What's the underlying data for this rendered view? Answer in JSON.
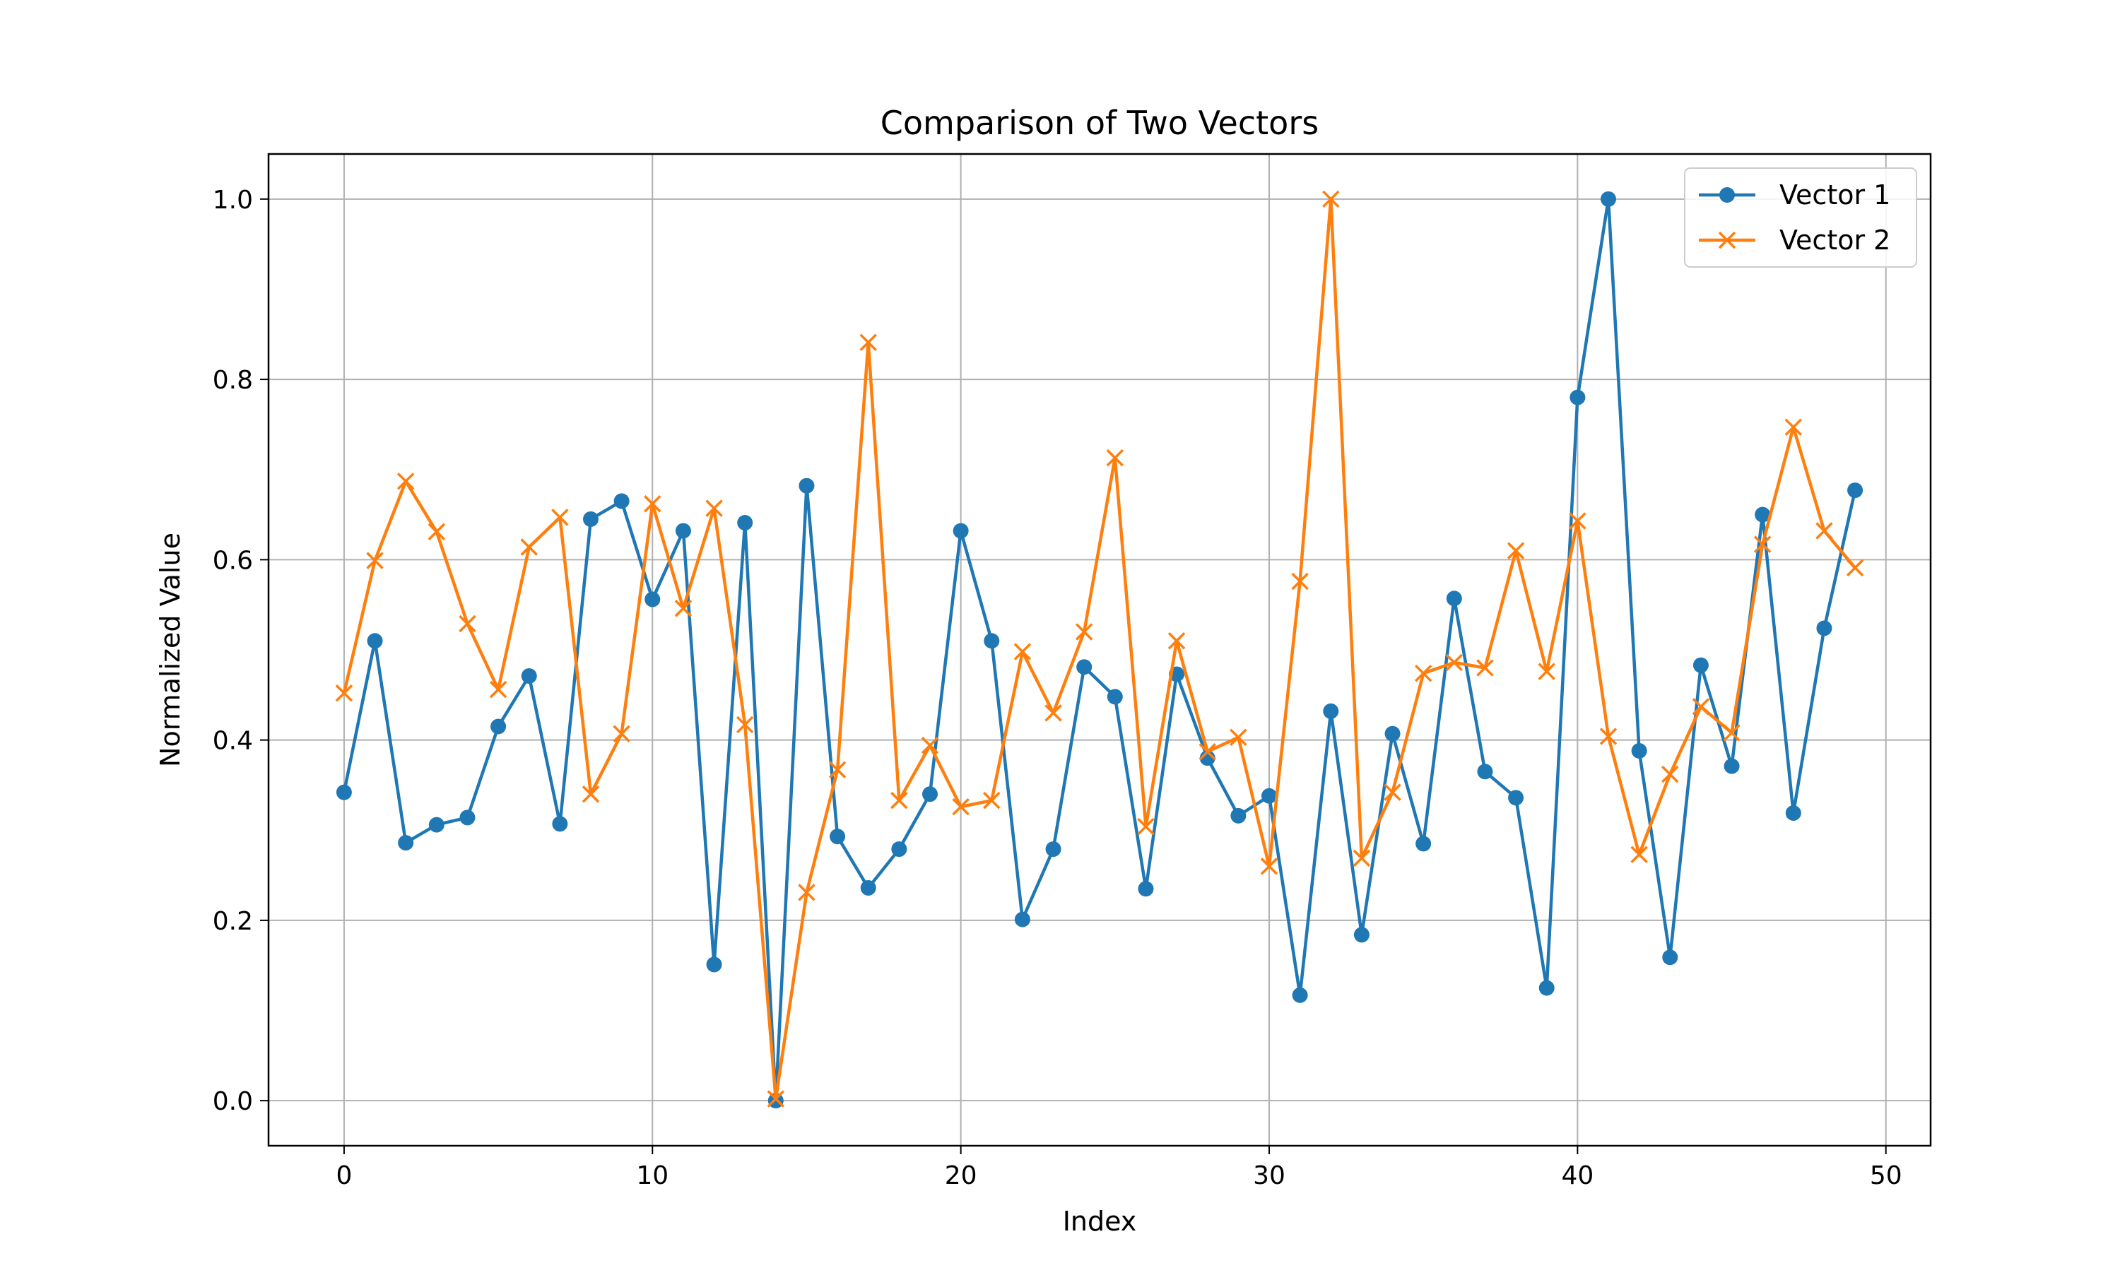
{
  "chart_data": {
    "type": "line",
    "title": "Comparison of Two Vectors",
    "xlabel": "Index",
    "ylabel": "Normalized Value",
    "xlim": [
      -2.45,
      51.45
    ],
    "ylim": [
      -0.05,
      1.05
    ],
    "xticks": [
      0,
      10,
      20,
      30,
      40,
      50
    ],
    "yticks": [
      0.0,
      0.2,
      0.4,
      0.6,
      0.8,
      1.0
    ],
    "xtick_labels": [
      "0",
      "10",
      "20",
      "30",
      "40",
      "50"
    ],
    "ytick_labels": [
      "0.0",
      "0.2",
      "0.4",
      "0.6",
      "0.8",
      "1.0"
    ],
    "grid": true,
    "legend_position": "top-right",
    "x": [
      0,
      1,
      2,
      3,
      4,
      5,
      6,
      7,
      8,
      9,
      10,
      11,
      12,
      13,
      14,
      15,
      16,
      17,
      18,
      19,
      20,
      21,
      22,
      23,
      24,
      25,
      26,
      27,
      28,
      29,
      30,
      31,
      32,
      33,
      34,
      35,
      36,
      37,
      38,
      39,
      40,
      41,
      42,
      43,
      44,
      45,
      46,
      47,
      48,
      49
    ],
    "series": [
      {
        "name": "Vector 1",
        "color": "#1f77b4",
        "marker": "circle",
        "values": [
          0.342,
          0.51,
          0.286,
          0.306,
          0.314,
          0.415,
          0.471,
          0.307,
          0.645,
          0.665,
          0.556,
          0.632,
          0.151,
          0.641,
          0.0,
          0.682,
          0.293,
          0.236,
          0.279,
          0.34,
          0.632,
          0.51,
          0.201,
          0.279,
          0.481,
          0.448,
          0.235,
          0.473,
          0.38,
          0.316,
          0.338,
          0.117,
          0.432,
          0.184,
          0.407,
          0.285,
          0.557,
          0.365,
          0.336,
          0.125,
          0.78,
          1.0,
          0.388,
          0.159,
          0.483,
          0.371,
          0.65,
          0.319,
          0.524,
          0.677
        ]
      },
      {
        "name": "Vector 2",
        "color": "#ff7f0e",
        "marker": "x",
        "values": [
          0.452,
          0.599,
          0.687,
          0.631,
          0.529,
          0.456,
          0.614,
          0.647,
          0.34,
          0.407,
          0.662,
          0.546,
          0.657,
          0.417,
          0.002,
          0.231,
          0.367,
          0.841,
          0.333,
          0.394,
          0.326,
          0.333,
          0.498,
          0.43,
          0.52,
          0.713,
          0.304,
          0.51,
          0.387,
          0.403,
          0.26,
          0.576,
          1.0,
          0.269,
          0.342,
          0.474,
          0.486,
          0.48,
          0.61,
          0.476,
          0.643,
          0.404,
          0.273,
          0.362,
          0.437,
          0.408,
          0.617,
          0.747,
          0.632,
          0.591
        ]
      }
    ]
  }
}
